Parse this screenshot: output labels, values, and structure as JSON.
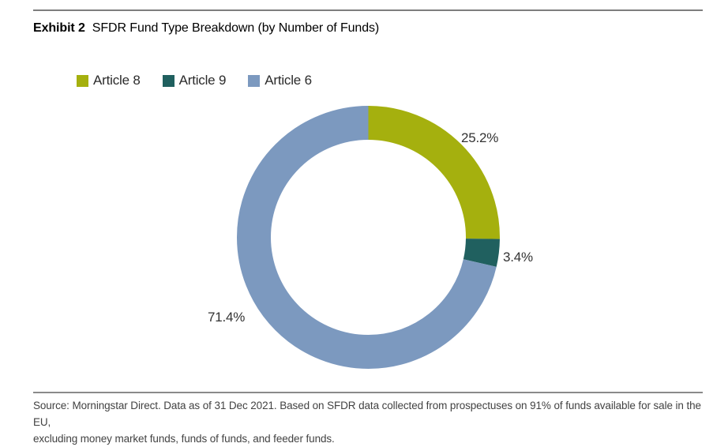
{
  "page": {
    "exhibit_label": "Exhibit 2",
    "title": "SFDR Fund Type Breakdown (by Number of Funds)"
  },
  "legend": {
    "items": [
      {
        "label": "Article 8",
        "color": "#a5b00e"
      },
      {
        "label": "Article 9",
        "color": "#20605f"
      },
      {
        "label": "Article 6",
        "color": "#7c99bf"
      }
    ]
  },
  "chart_data": {
    "type": "pie",
    "subtype": "donut",
    "title": "SFDR Fund Type Breakdown (by Number of Funds)",
    "categories": [
      "Article 8",
      "Article 9",
      "Article 6"
    ],
    "values": [
      25.2,
      3.4,
      71.4
    ],
    "unit": "%",
    "colors": [
      "#a5b00e",
      "#20605f",
      "#7c99bf"
    ],
    "labels": [
      "25.2%",
      "3.4%",
      "71.4%"
    ],
    "start_angle_deg": 0,
    "direction": "clockwise",
    "inner_radius_ratio": 0.74,
    "legend_position": "top-left",
    "hole_color": "#ffffff"
  },
  "footer": {
    "line1": "Source: Morningstar Direct. Data as of 31 Dec 2021. Based on SFDR data collected from prospectuses on 91% of funds available for sale in the EU,",
    "line2": "excluding money market funds, funds of funds, and feeder funds."
  }
}
